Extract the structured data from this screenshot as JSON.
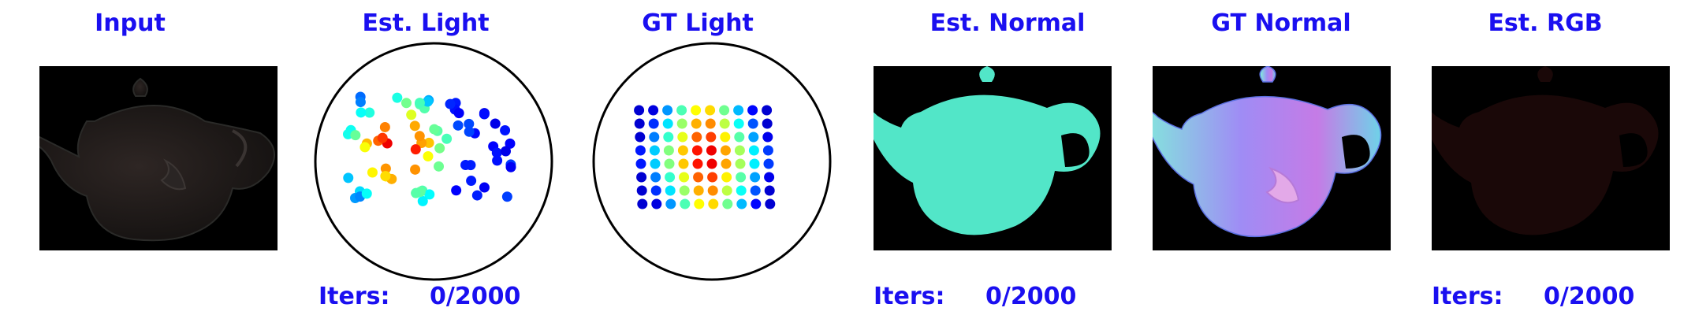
{
  "panels": {
    "input": {
      "title": "Input"
    },
    "est_light": {
      "title": "Est. Light"
    },
    "gt_light": {
      "title": "GT Light"
    },
    "est_normal": {
      "title": "Est. Normal"
    },
    "gt_normal": {
      "title": "GT Normal"
    },
    "est_rgb": {
      "title": "Est. RGB"
    }
  },
  "iters": {
    "label": "Iters:",
    "value": "0/2000"
  },
  "colors": {
    "title_text": "#1a0ff0",
    "image_background": "#000000",
    "est_normal_fill": "#52e6c8",
    "light_circle_stroke": "#000000"
  }
}
